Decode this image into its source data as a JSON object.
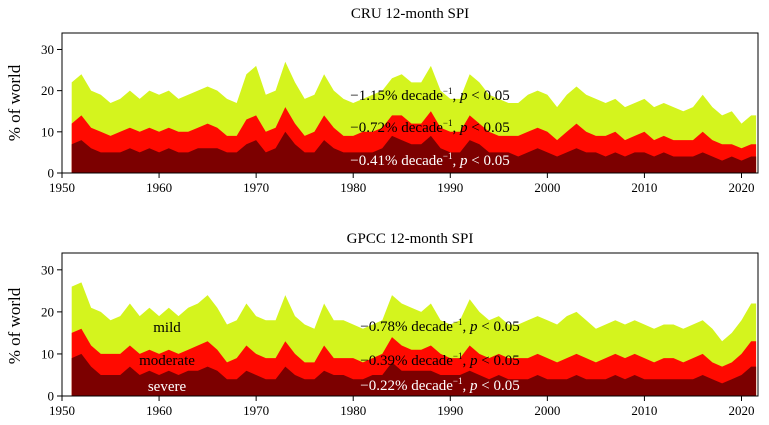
{
  "colors": {
    "mild": "#d4f41e",
    "moderate": "#ff0a00",
    "severe": "#7c0000"
  },
  "chart_data": [
    {
      "type": "area",
      "stacked": true,
      "title": "CRU 12-month SPI",
      "ylabel": "% of world",
      "xlabel": "",
      "xlim": [
        1950,
        2021.7
      ],
      "ylim": [
        0,
        34
      ],
      "xticks": [
        1950,
        1960,
        1970,
        1980,
        1990,
        2000,
        2010,
        2020
      ],
      "yticks": [
        0,
        10,
        20,
        30
      ],
      "grid": false,
      "x": [
        1951,
        1952,
        1953,
        1954,
        1955,
        1956,
        1957,
        1958,
        1959,
        1960,
        1961,
        1962,
        1963,
        1964,
        1965,
        1966,
        1967,
        1968,
        1969,
        1970,
        1971,
        1972,
        1973,
        1974,
        1975,
        1976,
        1977,
        1978,
        1979,
        1980,
        1981,
        1982,
        1983,
        1984,
        1985,
        1986,
        1987,
        1988,
        1989,
        1990,
        1991,
        1992,
        1993,
        1994,
        1995,
        1996,
        1997,
        1998,
        1999,
        2000,
        2001,
        2002,
        2003,
        2004,
        2005,
        2006,
        2007,
        2008,
        2009,
        2010,
        2011,
        2012,
        2013,
        2014,
        2015,
        2016,
        2017,
        2018,
        2019,
        2020,
        2021
      ],
      "series": [
        {
          "name": "mild",
          "cumulative_top": [
            22,
            24,
            20,
            19,
            17,
            18,
            20,
            18,
            20,
            19,
            20,
            18,
            19,
            20,
            21,
            20,
            18,
            17,
            24,
            26,
            19,
            20,
            27,
            22,
            18,
            19,
            24,
            20,
            18,
            17,
            18,
            19,
            20,
            23,
            24,
            22,
            22,
            26,
            20,
            18,
            18,
            24,
            22,
            19,
            18,
            17,
            17,
            19,
            20,
            19,
            16,
            19,
            21,
            19,
            18,
            17,
            18,
            16,
            17,
            18,
            16,
            17,
            16,
            15,
            16,
            19,
            16,
            14,
            15,
            12,
            14
          ]
        },
        {
          "name": "moderate",
          "cumulative_top": [
            12,
            14,
            11,
            10,
            9,
            10,
            11,
            10,
            11,
            10,
            11,
            10,
            10,
            11,
            12,
            11,
            9,
            9,
            13,
            14,
            10,
            11,
            16,
            12,
            9,
            10,
            14,
            11,
            9,
            9,
            10,
            10,
            11,
            14,
            14,
            12,
            12,
            15,
            11,
            10,
            10,
            14,
            12,
            10,
            9,
            9,
            9,
            10,
            11,
            10,
            8,
            10,
            12,
            10,
            9,
            9,
            10,
            8,
            9,
            10,
            8,
            9,
            8,
            8,
            8,
            10,
            8,
            7,
            7,
            6,
            7
          ]
        },
        {
          "name": "severe",
          "cumulative_top": [
            7,
            8,
            6,
            5,
            5,
            5,
            6,
            5,
            6,
            5,
            6,
            5,
            5,
            6,
            6,
            6,
            5,
            5,
            7,
            8,
            5,
            6,
            10,
            7,
            5,
            5,
            8,
            6,
            5,
            5,
            5,
            5,
            6,
            9,
            8,
            7,
            7,
            9,
            6,
            5,
            5,
            8,
            7,
            5,
            5,
            5,
            4,
            5,
            6,
            5,
            4,
            5,
            6,
            5,
            5,
            4,
            5,
            4,
            5,
            5,
            4,
            5,
            4,
            4,
            4,
            5,
            4,
            3,
            4,
            3,
            4
          ]
        }
      ],
      "annotations": [
        {
          "series": "mild",
          "rate": "−1.15%",
          "unit": " decade",
          "exp": "−1",
          "sep": ", ",
          "p": "p",
          "ptext": " < 0.05"
        },
        {
          "series": "moderate",
          "rate": "−0.72%",
          "unit": " decade",
          "exp": "−1",
          "sep": ", ",
          "p": "p",
          "ptext": " < 0.05"
        },
        {
          "series": "severe",
          "rate": "−0.41%",
          "unit": " decade",
          "exp": "−1",
          "sep": ", ",
          "p": "p",
          "ptext": " < 0.05"
        }
      ]
    },
    {
      "type": "area",
      "stacked": true,
      "title": "GPCC 12-month SPI",
      "ylabel": "% of world",
      "xlabel": "",
      "xlim": [
        1950,
        2021.7
      ],
      "ylim": [
        0,
        34
      ],
      "xticks": [
        1950,
        1960,
        1970,
        1980,
        1990,
        2000,
        2010,
        2020
      ],
      "yticks": [
        0,
        10,
        20,
        30
      ],
      "grid": false,
      "legend_labels": [
        "mild",
        "moderate",
        "severe"
      ],
      "x": [
        1951,
        1952,
        1953,
        1954,
        1955,
        1956,
        1957,
        1958,
        1959,
        1960,
        1961,
        1962,
        1963,
        1964,
        1965,
        1966,
        1967,
        1968,
        1969,
        1970,
        1971,
        1972,
        1973,
        1974,
        1975,
        1976,
        1977,
        1978,
        1979,
        1980,
        1981,
        1982,
        1983,
        1984,
        1985,
        1986,
        1987,
        1988,
        1989,
        1990,
        1991,
        1992,
        1993,
        1994,
        1995,
        1996,
        1997,
        1998,
        1999,
        2000,
        2001,
        2002,
        2003,
        2004,
        2005,
        2006,
        2007,
        2008,
        2009,
        2010,
        2011,
        2012,
        2013,
        2014,
        2015,
        2016,
        2017,
        2018,
        2019,
        2020,
        2021
      ],
      "series": [
        {
          "name": "mild",
          "cumulative_top": [
            26,
            27,
            21,
            20,
            18,
            19,
            22,
            19,
            21,
            19,
            21,
            19,
            21,
            22,
            24,
            21,
            17,
            18,
            22,
            19,
            18,
            18,
            24,
            19,
            17,
            16,
            22,
            18,
            18,
            17,
            16,
            17,
            18,
            24,
            22,
            21,
            20,
            22,
            18,
            17,
            18,
            23,
            20,
            18,
            19,
            17,
            17,
            18,
            19,
            18,
            17,
            19,
            20,
            18,
            16,
            17,
            18,
            17,
            18,
            17,
            16,
            17,
            17,
            16,
            17,
            18,
            16,
            13,
            15,
            18,
            22
          ]
        },
        {
          "name": "moderate",
          "cumulative_top": [
            15,
            16,
            12,
            10,
            10,
            10,
            12,
            10,
            11,
            10,
            11,
            10,
            11,
            12,
            13,
            11,
            8,
            9,
            12,
            10,
            9,
            9,
            13,
            10,
            8,
            8,
            12,
            9,
            9,
            9,
            8,
            9,
            10,
            14,
            12,
            11,
            11,
            12,
            10,
            9,
            9,
            12,
            10,
            9,
            10,
            9,
            9,
            9,
            10,
            9,
            8,
            9,
            10,
            9,
            8,
            9,
            10,
            9,
            10,
            9,
            8,
            9,
            9,
            8,
            9,
            10,
            8,
            7,
            8,
            10,
            13
          ]
        },
        {
          "name": "severe",
          "cumulative_top": [
            9,
            10,
            7,
            5,
            5,
            5,
            7,
            5,
            6,
            5,
            6,
            5,
            6,
            6,
            7,
            6,
            4,
            4,
            6,
            5,
            4,
            4,
            7,
            5,
            4,
            4,
            6,
            5,
            5,
            4,
            4,
            5,
            5,
            8,
            6,
            6,
            6,
            6,
            5,
            5,
            5,
            6,
            5,
            4,
            5,
            4,
            4,
            4,
            5,
            4,
            4,
            4,
            5,
            4,
            4,
            4,
            5,
            4,
            5,
            4,
            4,
            4,
            4,
            4,
            4,
            5,
            4,
            3,
            4,
            5,
            7
          ]
        }
      ],
      "annotations": [
        {
          "series": "mild",
          "rate": "−0.78%",
          "unit": " decade",
          "exp": "−1",
          "sep": ", ",
          "p": "p",
          "ptext": " < 0.05"
        },
        {
          "series": "moderate",
          "rate": "−0.39%",
          "unit": " decade",
          "exp": "−1",
          "sep": ", ",
          "p": "p",
          "ptext": " < 0.05"
        },
        {
          "series": "severe",
          "rate": "−0.22%",
          "unit": " decade",
          "exp": "−1",
          "sep": ", ",
          "p": "p",
          "ptext": " < 0.05"
        }
      ]
    }
  ]
}
